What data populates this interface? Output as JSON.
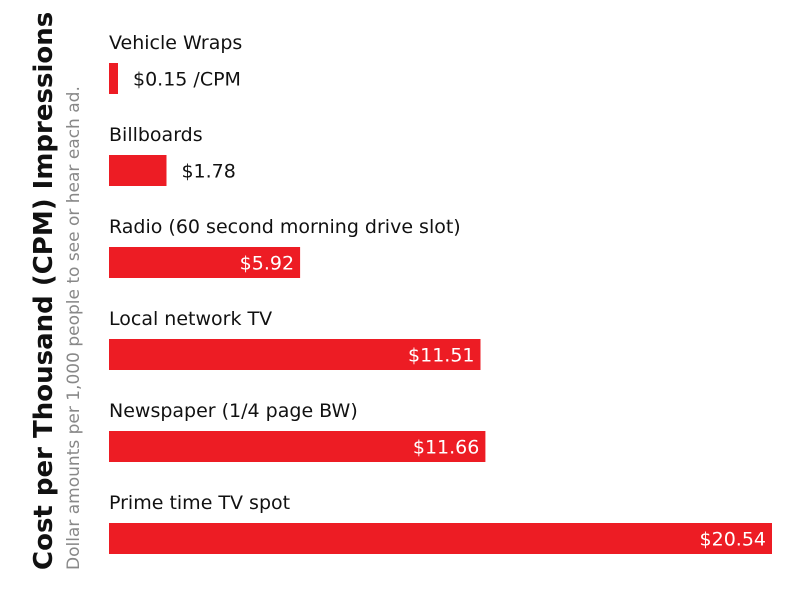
{
  "chart_data": {
    "type": "bar",
    "orientation": "horizontal",
    "title": "Cost per Thousand (CPM) Impressions",
    "subtitle": "Dollar amounts per 1,000 people to see or hear each ad.",
    "categories": [
      "Vehicle Wraps",
      "Billboards",
      "Radio (60 second morning drive slot)",
      "Local network TV",
      "Newspaper (1/4 page BW)",
      "Prime time TV spot"
    ],
    "values": [
      0.15,
      1.78,
      5.92,
      11.51,
      11.66,
      20.54
    ],
    "value_labels": [
      "$0.15 /CPM",
      "$1.78",
      "$5.92",
      "$11.51",
      "$11.66",
      "$20.54"
    ],
    "bar_color": "#ed1c24",
    "value_label_color_inside": "#ffffff",
    "value_label_color_outside": "#111111",
    "xlim": [
      0,
      20.54
    ],
    "grid": false,
    "legend": "none"
  }
}
